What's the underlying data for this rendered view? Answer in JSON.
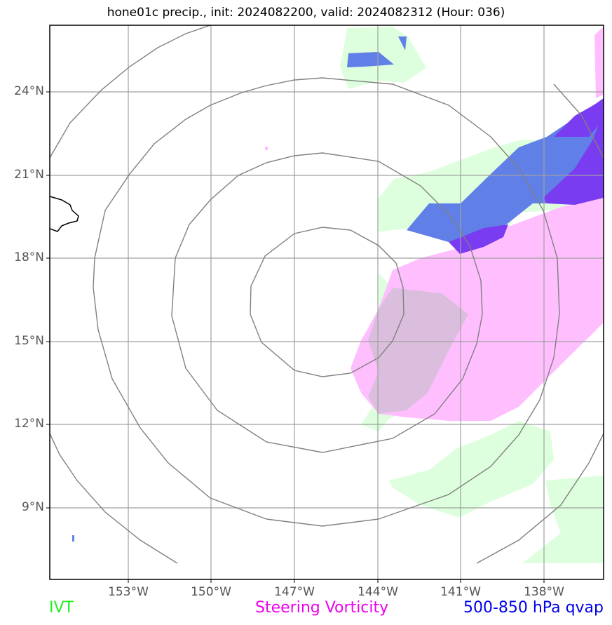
{
  "title": "hone01c precip., init: 2024082200, valid: 2024082312 (Hour: 036)",
  "lat_labels": [
    "24°N",
    "21°N",
    "18°N",
    "15°N",
    "12°N",
    "9°N"
  ],
  "lon_labels": [
    "153°W",
    "150°W",
    "147°W",
    "144°W",
    "141°W",
    "138°W"
  ],
  "legend": {
    "ivt": {
      "label": "IVT",
      "color": "#22ee22"
    },
    "vorticity": {
      "label": "Steering Vorticity",
      "color": "#ee00ee"
    },
    "qvap": {
      "label": "500-850 hPa qvap",
      "color": "#0000ee"
    }
  },
  "colors": {
    "ivt_fill": "#ddffdd",
    "vorticity_fill": "#ffbfff",
    "qvap_light": "#6080e8",
    "qvap_dark": "#7a3cf0",
    "overlap_fill": "#dbbede",
    "range_rings": "#808080",
    "gridlines": "#a0a0a0"
  }
}
